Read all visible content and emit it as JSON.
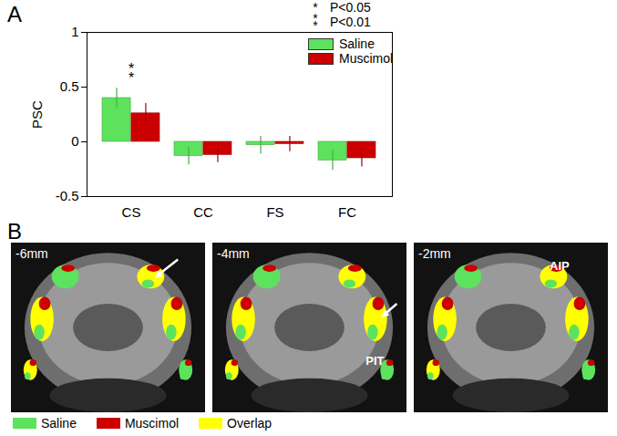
{
  "chart_data": {
    "type": "bar",
    "panel": "A",
    "y_label": "PSC",
    "categories": [
      "CS",
      "CC",
      "FS",
      "FC"
    ],
    "series": [
      {
        "name": "Saline",
        "color": "#5de25d",
        "values": [
          0.4,
          -0.13,
          -0.03,
          -0.17
        ],
        "errors": [
          0.09,
          0.08,
          0.08,
          0.09
        ]
      },
      {
        "name": "Muscimol",
        "color": "#cc0000",
        "values": [
          0.26,
          -0.12,
          -0.02,
          -0.15
        ],
        "errors": [
          0.09,
          0.07,
          0.07,
          0.08
        ]
      }
    ],
    "ylim": [
      -0.5,
      1
    ],
    "yticks": [
      -0.5,
      0,
      0.5,
      1
    ],
    "legend": "top-right",
    "significance_legend": [
      {
        "symbol": "*",
        "label": "P<0.05"
      },
      {
        "symbol": "**",
        "label": "P<0.01"
      }
    ],
    "annotations": [
      {
        "category": "CS",
        "text": "**"
      }
    ]
  },
  "panel_b": {
    "panel": "B",
    "slices": [
      {
        "label": "-6mm"
      },
      {
        "label": "-4mm",
        "annotation": "PIT"
      },
      {
        "label": "-2mm",
        "annotation": "AIP"
      }
    ],
    "legend": [
      {
        "name": "Saline",
        "color": "#5de25d"
      },
      {
        "name": "Muscimol",
        "color": "#cc0000"
      },
      {
        "name": "Overlap",
        "color": "#ffff00"
      }
    ]
  }
}
